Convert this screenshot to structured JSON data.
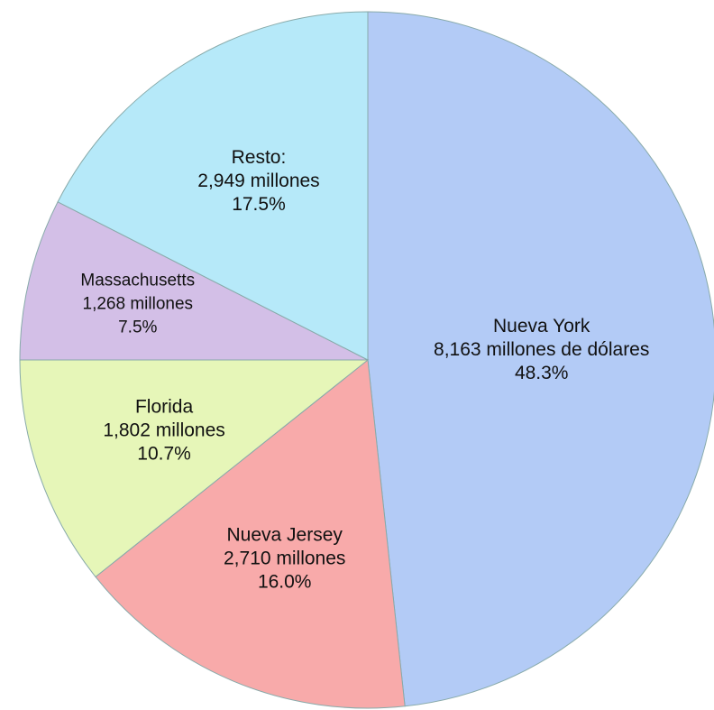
{
  "chart_data": {
    "type": "pie",
    "categories": [
      "Nueva York",
      "Nueva Jersey",
      "Florida",
      "Massachusetts",
      "Resto:"
    ],
    "amount_labels": [
      "8,163 millones de dólares",
      "2,710 millones",
      "1,802 millones",
      "1,268 millones",
      "2,949 millones"
    ],
    "values": [
      48.3,
      16.0,
      10.7,
      7.5,
      17.5
    ],
    "value_labels": [
      "48.3%",
      "16.0%",
      "10.7%",
      "7.5%",
      "17.5%"
    ],
    "colors": [
      "#b3cbf6",
      "#f8aaaa",
      "#e6f6b8",
      "#d3bfe7",
      "#b6e9f9"
    ],
    "start_angle": 0,
    "direction": "clockwise"
  }
}
